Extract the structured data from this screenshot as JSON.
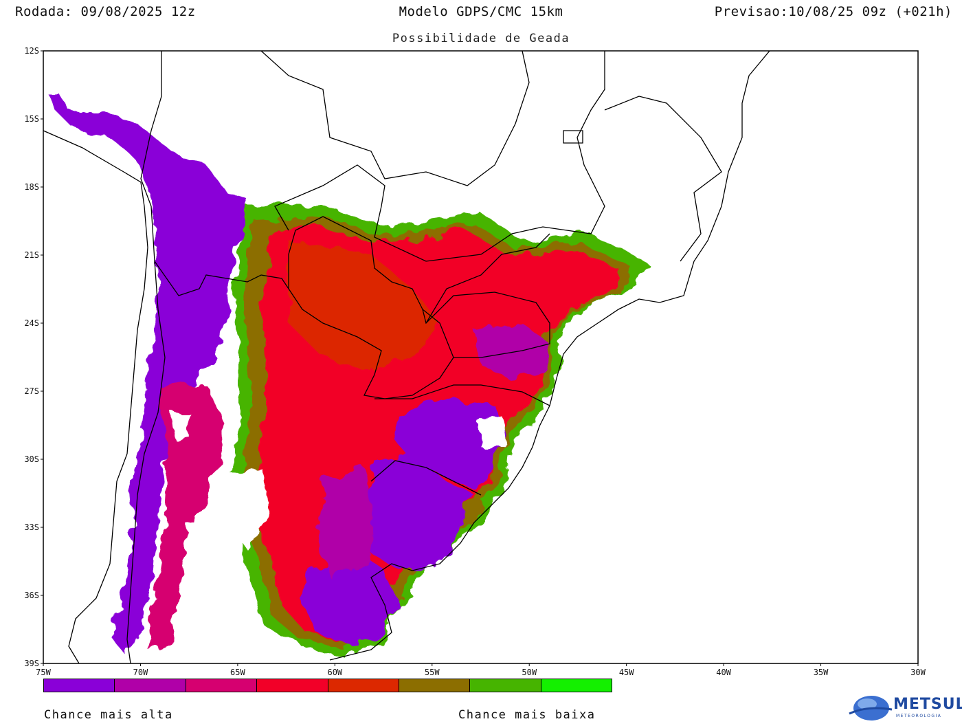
{
  "header": {
    "run": "Rodada: 09/08/2025 12z",
    "model": "Modelo GDPS/CMC 15km",
    "valid": "Previsao:10/08/25 09z (+021h)",
    "subtitle": "Possibilidade de Geada"
  },
  "map": {
    "lon_range": [
      -75,
      -30
    ],
    "lat_range": [
      -39,
      -12
    ],
    "lat_ticks": [
      "12S",
      "15S",
      "18S",
      "21S",
      "24S",
      "27S",
      "30S",
      "33S",
      "36S",
      "39S"
    ],
    "lon_ticks": [
      "75W",
      "70W",
      "65W",
      "60W",
      "55W",
      "50W",
      "45W",
      "40W",
      "35W",
      "30W"
    ]
  },
  "legend": {
    "colors": [
      "#8a00d8",
      "#b000a8",
      "#d60070",
      "#f20028",
      "#dc2800",
      "#8c6e00",
      "#46b400",
      "#14f000"
    ],
    "left_label": "Chance mais alta",
    "right_label": "Chance mais baixa"
  },
  "logo": {
    "name": "METSUL",
    "tagline": "METEOROLOGIA"
  }
}
